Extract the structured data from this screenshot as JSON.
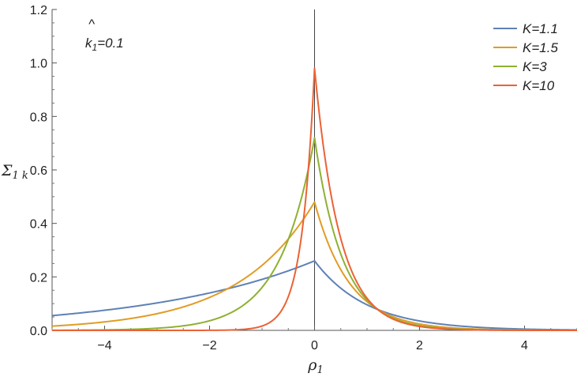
{
  "chart_data": {
    "type": "line",
    "title": "",
    "xlabel": "ρ",
    "xlabel_sub": "1",
    "ylabel": "Σ",
    "ylabel_sub": "1 k",
    "xlim": [
      -5,
      5
    ],
    "ylim": [
      0,
      1.2
    ],
    "x_ticks": [
      -4,
      -2,
      0,
      2,
      4
    ],
    "x_tick_labels": [
      "−4",
      "−2",
      "0",
      "2",
      "4"
    ],
    "y_ticks": [
      0,
      0.2,
      0.4,
      0.6,
      0.8,
      1.0,
      1.2
    ],
    "y_tick_labels": [
      "0.0",
      "0.2",
      "0.4",
      "0.6",
      "0.8",
      "1.0",
      "1.2"
    ],
    "annotation": "k̂₁=0.1",
    "annotation_hat": "^",
    "annotation_base": "k",
    "annotation_sub": "1",
    "annotation_rest": "=0.1",
    "legend_position": "top-right",
    "series": [
      {
        "name": "K=1.1",
        "color": "#5e81b5",
        "peak": 0.26,
        "left_decay": 0.31,
        "right_decay": 1.0
      },
      {
        "name": "K=1.5",
        "color": "#e19c24",
        "peak": 0.48,
        "left_decay": 0.68,
        "right_decay": 1.5
      },
      {
        "name": "K=3",
        "color": "#8fb032",
        "peak": 0.72,
        "left_decay": 1.5,
        "right_decay": 1.85
      },
      {
        "name": "K=10",
        "color": "#eb6235",
        "peak": 0.98,
        "left_decay": 4.1,
        "right_decay": 2.1
      }
    ]
  }
}
